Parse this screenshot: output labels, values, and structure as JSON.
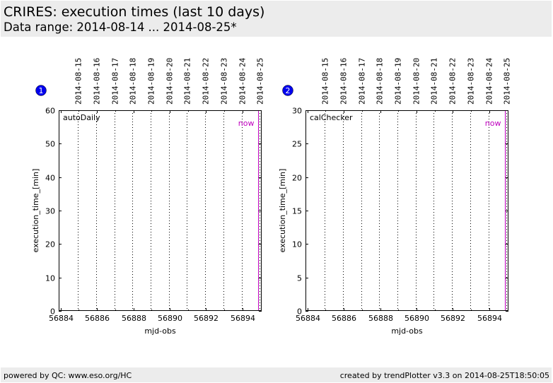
{
  "header": {
    "title": "CRIRES: execution times (last 10 days)",
    "subtitle": "Data range: 2014-08-14 ... 2014-08-25*"
  },
  "footer": {
    "left": "powered by QC: www.eso.org/HC",
    "right": "created by trendPlotter v3.3 on 2014-08-25T18:50:05"
  },
  "colors": {
    "now_line": "#bf00bf",
    "badge": "#0000ee"
  },
  "chart_data": [
    {
      "type": "line",
      "panel_number": "1",
      "label": "autoDaily",
      "now_label": "now",
      "xlabel": "mjd-obs",
      "ylabel": "execution_time_[min]",
      "xlim": [
        56883.9,
        56895.05
      ],
      "ylim": [
        0,
        60
      ],
      "xticks": [
        56884,
        56886,
        56888,
        56890,
        56892,
        56894
      ],
      "yticks": [
        0,
        10,
        20,
        30,
        40,
        50,
        60
      ],
      "date_marks": [
        {
          "x": 56884.95,
          "label": "2014-08-15"
        },
        {
          "x": 56885.95,
          "label": "2014-08-16"
        },
        {
          "x": 56886.95,
          "label": "2014-08-17"
        },
        {
          "x": 56887.95,
          "label": "2014-08-18"
        },
        {
          "x": 56888.95,
          "label": "2014-08-19"
        },
        {
          "x": 56889.95,
          "label": "2014-08-20"
        },
        {
          "x": 56890.95,
          "label": "2014-08-21"
        },
        {
          "x": 56891.95,
          "label": "2014-08-22"
        },
        {
          "x": 56892.95,
          "label": "2014-08-23"
        },
        {
          "x": 56893.95,
          "label": "2014-08-24"
        },
        {
          "x": 56894.95,
          "label": "2014-08-25"
        }
      ],
      "now_x": 56894.85,
      "series": []
    },
    {
      "type": "line",
      "panel_number": "2",
      "label": "calChecker",
      "now_label": "now",
      "xlabel": "mjd-obs",
      "ylabel": "execution_time_[min]",
      "xlim": [
        56883.9,
        56895.05
      ],
      "ylim": [
        0,
        30
      ],
      "xticks": [
        56884,
        56886,
        56888,
        56890,
        56892,
        56894
      ],
      "yticks": [
        0,
        5,
        10,
        15,
        20,
        25,
        30
      ],
      "date_marks": [
        {
          "x": 56884.95,
          "label": "2014-08-15"
        },
        {
          "x": 56885.95,
          "label": "2014-08-16"
        },
        {
          "x": 56886.95,
          "label": "2014-08-17"
        },
        {
          "x": 56887.95,
          "label": "2014-08-18"
        },
        {
          "x": 56888.95,
          "label": "2014-08-19"
        },
        {
          "x": 56889.95,
          "label": "2014-08-20"
        },
        {
          "x": 56890.95,
          "label": "2014-08-21"
        },
        {
          "x": 56891.95,
          "label": "2014-08-22"
        },
        {
          "x": 56892.95,
          "label": "2014-08-23"
        },
        {
          "x": 56893.95,
          "label": "2014-08-24"
        },
        {
          "x": 56894.95,
          "label": "2014-08-25"
        }
      ],
      "now_x": 56894.85,
      "series": []
    }
  ]
}
